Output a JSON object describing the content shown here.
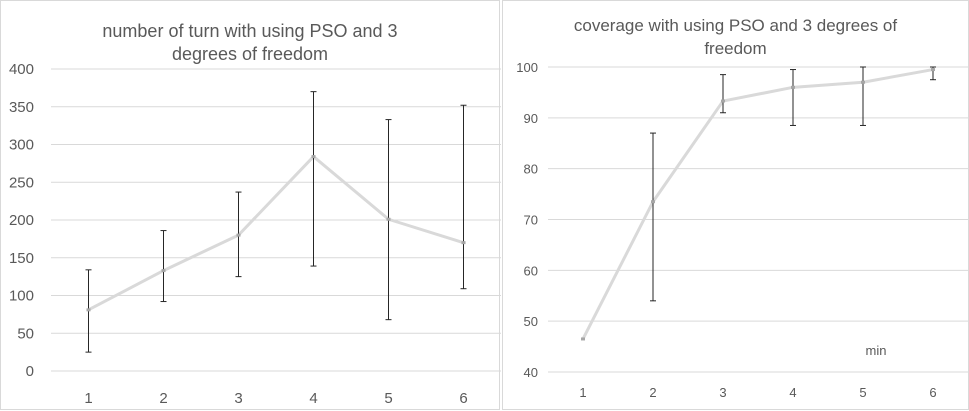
{
  "chart_data": [
    {
      "type": "line",
      "title": "number of turn  with using PSO and 3 degrees of freedom",
      "categories": [
        "1",
        "2",
        "3",
        "4",
        "5",
        "6"
      ],
      "series": [
        {
          "values": [
            81,
            133,
            180,
            284,
            201,
            170
          ],
          "error_low": [
            25,
            92,
            125,
            139,
            68,
            109
          ],
          "error_high": [
            134,
            186,
            237,
            370,
            333,
            352
          ]
        }
      ],
      "ylim": [
        0,
        400
      ],
      "yticks": [
        "0",
        "50",
        "100",
        "150",
        "200",
        "250",
        "300",
        "350",
        "400"
      ],
      "grid": true,
      "line_color": "#d9d9d9"
    },
    {
      "type": "line",
      "title": "coverage with using PSO and 3 degrees of freedom",
      "categories": [
        "1",
        "2",
        "3",
        "4",
        "5",
        "6"
      ],
      "series": [
        {
          "values": [
            46.5,
            73.5,
            93.3,
            96,
            97,
            99.5
          ],
          "error_low": [
            46.5,
            54,
            91,
            88.5,
            88.5,
            97.5
          ],
          "error_high": [
            46.5,
            87,
            98.5,
            99.5,
            100,
            100
          ]
        }
      ],
      "ylim": [
        40,
        100
      ],
      "yticks": [
        "40",
        "50",
        "60",
        "70",
        "80",
        "90",
        "100"
      ],
      "grid": true,
      "annotation": "min",
      "line_color": "#d9d9d9"
    }
  ]
}
